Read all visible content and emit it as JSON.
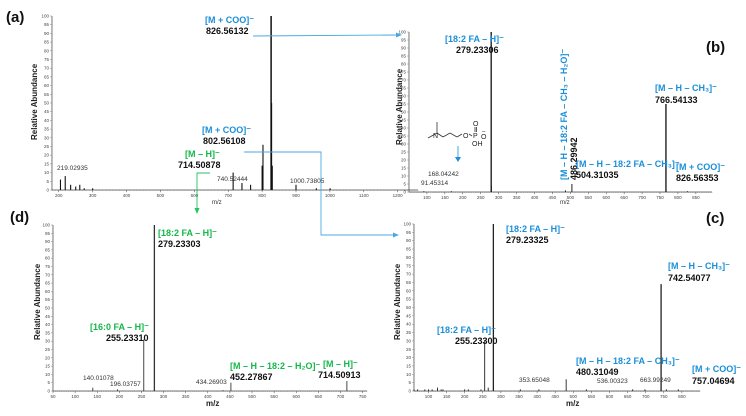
{
  "colors": {
    "blue": "#1a8fd8",
    "green": "#13b84a",
    "peak": "#111111",
    "connector_blue": "#4aa8e0",
    "connector_green": "#22c55e"
  },
  "chart_data": [
    {
      "panel": "(a)",
      "type": "bar",
      "title": "",
      "xlabel": "m/z",
      "ylabel": "Relative Abundance",
      "xlim": [
        200,
        1250
      ],
      "ylim": [
        0,
        100
      ],
      "xticks": [
        200,
        300,
        400,
        500,
        600,
        700,
        800,
        900,
        1000,
        1100,
        1200
      ],
      "yticks": [
        0,
        5,
        10,
        15,
        20,
        25,
        30,
        35,
        40,
        45,
        50,
        55,
        60,
        65,
        70,
        75,
        80,
        85,
        90,
        95,
        100
      ],
      "peaks": [
        {
          "mz": 205,
          "y": 6
        },
        {
          "mz": 219.02935,
          "y": 8
        },
        {
          "mz": 235,
          "y": 3
        },
        {
          "mz": 250,
          "y": 2
        },
        {
          "mz": 262,
          "y": 3
        },
        {
          "mz": 275,
          "y": 1
        },
        {
          "mz": 300,
          "y": 1
        },
        {
          "mz": 714.50878,
          "y": 10
        },
        {
          "mz": 740.52444,
          "y": 4
        },
        {
          "mz": 766,
          "y": 3
        },
        {
          "mz": 800,
          "y": 14
        },
        {
          "mz": 802.56108,
          "y": 26
        },
        {
          "mz": 826.56132,
          "y": 100
        },
        {
          "mz": 828,
          "y": 50
        },
        {
          "mz": 830,
          "y": 14
        },
        {
          "mz": 900,
          "y": 3
        },
        {
          "mz": 960,
          "y": 1
        },
        {
          "mz": 1000.73805,
          "y": 1
        }
      ],
      "annotations": [
        {
          "ion": "[M + COO]⁻",
          "mz_label": "826.56132",
          "color": "blue"
        },
        {
          "ion": "[M + COO]⁻",
          "mz_label": "802.56108",
          "color": "blue"
        },
        {
          "ion": "[M – H]⁻",
          "mz_label": "714.50878",
          "color": "green"
        },
        {
          "mz_label": "219.02935"
        },
        {
          "mz_label": "740.52444"
        },
        {
          "mz_label": "1000.73805"
        }
      ]
    },
    {
      "panel": "(b)",
      "type": "bar",
      "xlabel": "m/z",
      "ylabel": "Relative Abundance",
      "xlim": [
        50,
        880
      ],
      "ylim": [
        0,
        100
      ],
      "xticks": [
        100,
        150,
        200,
        250,
        300,
        350,
        400,
        450,
        500,
        550,
        600,
        650,
        700,
        750,
        800,
        850
      ],
      "peaks": [
        {
          "mz": 91.45314,
          "y": 0.5
        },
        {
          "mz": 168.04242,
          "y": 0.5
        },
        {
          "mz": 279.23306,
          "y": 100
        },
        {
          "mz": 280,
          "y": 4
        },
        {
          "mz": 486.29942,
          "y": 1
        },
        {
          "mz": 504.31035,
          "y": 5
        },
        {
          "mz": 766.54133,
          "y": 55
        },
        {
          "mz": 826.56353,
          "y": 0.5
        }
      ],
      "annotations": [
        {
          "ion": "[18:2 FA – H]⁻",
          "mz_label": "279.23306",
          "color": "blue"
        },
        {
          "ion": "[M – H – 18:2 FA – CH₃ – H₂O]⁻",
          "mz_label": "486.29942",
          "color": "blue",
          "rotated": true
        },
        {
          "ion": "[M – H – 18:2 FA – CH₃]⁻",
          "mz_label": "504.31035",
          "color": "blue"
        },
        {
          "ion": "[M – H – CH₃]⁻",
          "mz_label": "766.54133",
          "color": "blue"
        },
        {
          "ion": "[M + COO]⁻",
          "mz_label": "826.56353",
          "color": "blue"
        },
        {
          "mz_label": "91.45314"
        },
        {
          "mz_label": "168.04242"
        }
      ],
      "structure": {
        "atoms": [
          "N",
          "O",
          "P",
          "O",
          "O",
          "OH"
        ],
        "charge": "–"
      }
    },
    {
      "panel": "(c)",
      "type": "bar",
      "xlabel": "m/z",
      "ylabel": "Relative Abundance",
      "xlim": [
        50,
        850
      ],
      "ylim": [
        0,
        100
      ],
      "xticks": [
        100,
        150,
        200,
        250,
        300,
        350,
        400,
        450,
        500,
        550,
        600,
        650,
        700,
        750,
        800
      ],
      "peaks": [
        {
          "mz": 60,
          "y": 1
        },
        {
          "mz": 70,
          "y": 1
        },
        {
          "mz": 90,
          "y": 1
        },
        {
          "mz": 100,
          "y": 1
        },
        {
          "mz": 110,
          "y": 1
        },
        {
          "mz": 125,
          "y": 2
        },
        {
          "mz": 135,
          "y": 1
        },
        {
          "mz": 140,
          "y": 1
        },
        {
          "mz": 200,
          "y": 1
        },
        {
          "mz": 210,
          "y": 1
        },
        {
          "mz": 245,
          "y": 1
        },
        {
          "mz": 255.233,
          "y": 30
        },
        {
          "mz": 265,
          "y": 2
        },
        {
          "mz": 279.23325,
          "y": 100
        },
        {
          "mz": 353.65048,
          "y": 1
        },
        {
          "mz": 405,
          "y": 1
        },
        {
          "mz": 480.31049,
          "y": 7
        },
        {
          "mz": 536.00323,
          "y": 1
        },
        {
          "mz": 663.99249,
          "y": 1
        },
        {
          "mz": 698,
          "y": 1
        },
        {
          "mz": 742.54077,
          "y": 64
        },
        {
          "mz": 757.04694,
          "y": 1
        },
        {
          "mz": 790,
          "y": 1
        }
      ],
      "annotations": [
        {
          "ion": "[18:2 FA – H]⁻",
          "mz_label": "279.23325",
          "color": "blue"
        },
        {
          "ion": "[18:2 FA – H]⁻",
          "mz_label": "255.23300",
          "color": "blue"
        },
        {
          "ion": "[M – H – 18:2 FA – CH₃]⁻",
          "mz_label": "480.31049",
          "color": "blue"
        },
        {
          "ion": "[M – H – CH₃]⁻",
          "mz_label": "742.54077",
          "color": "blue"
        },
        {
          "ion": "[M + COO]⁻",
          "mz_label": "757.04694",
          "color": "blue"
        },
        {
          "mz_label": "353.65048"
        },
        {
          "mz_label": "536.00323"
        },
        {
          "mz_label": "663.99249"
        }
      ]
    },
    {
      "panel": "(d)",
      "type": "bar",
      "xlabel": "m/z",
      "ylabel": "Relative Abundance",
      "xlim": [
        50,
        750
      ],
      "ylim": [
        0,
        100
      ],
      "xticks": [
        50,
        100,
        150,
        200,
        250,
        300,
        350,
        400,
        450,
        500,
        550,
        600,
        650,
        700,
        750
      ],
      "peaks": [
        {
          "mz": 140.01078,
          "y": 2
        },
        {
          "mz": 196.03757,
          "y": 1
        },
        {
          "mz": 255.2331,
          "y": 31
        },
        {
          "mz": 279.23303,
          "y": 100
        },
        {
          "mz": 434.26903,
          "y": 0.5
        },
        {
          "mz": 452.27867,
          "y": 5
        },
        {
          "mz": 714.50913,
          "y": 6
        }
      ],
      "annotations": [
        {
          "ion": "[18:2 FA – H]⁻",
          "mz_label": "279.23303",
          "color": "green"
        },
        {
          "ion": "[16:0 FA – H]⁻",
          "mz_label": "255.23310",
          "color": "green"
        },
        {
          "ion": "[M – H – 18:2 – H₂O]⁻",
          "mz_label": "452.27867",
          "color": "green"
        },
        {
          "ion": "[M – H]⁻",
          "mz_label": "714.50913",
          "color": "green"
        },
        {
          "mz_label": "140.01078"
        },
        {
          "mz_label": "196.03757"
        },
        {
          "mz_label": "434.26903"
        }
      ]
    }
  ],
  "panels": {
    "a": {
      "label": "(a)"
    },
    "b": {
      "label": "(b)"
    },
    "c": {
      "label": "(c)"
    },
    "d": {
      "label": "(d)"
    }
  },
  "axis": {
    "ylabel": "Relative Abundance",
    "xlabel": "m/z"
  }
}
